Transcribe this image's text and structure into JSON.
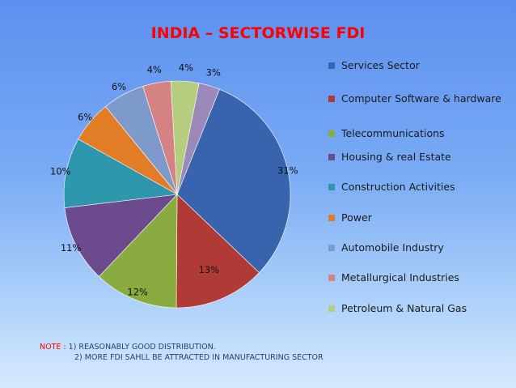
{
  "chart_data": {
    "type": "pie",
    "title": "INDIA – SECTORWISE FDI",
    "legend_position": "right",
    "slices": [
      {
        "name": "Services Sector",
        "value": 31,
        "label": "31%",
        "color": "#3864ad"
      },
      {
        "name": "Computer Software & hardware",
        "value": 13,
        "label": "13%",
        "color": "#b03a36"
      },
      {
        "name": "Telecommunications",
        "value": 12,
        "label": "12%",
        "color": "#89ab3f"
      },
      {
        "name": "Housing & real Estate",
        "value": 11,
        "label": "11%",
        "color": "#6b4a8e"
      },
      {
        "name": "Construction Activities",
        "value": 10,
        "label": "10%",
        "color": "#2e96ad"
      },
      {
        "name": "Power",
        "value": 6,
        "label": "6%",
        "color": "#e27d27"
      },
      {
        "name": "Automobile Industry",
        "value": 6,
        "label": "6%",
        "color": "#7d9acb"
      },
      {
        "name": "Metallurgical Industries",
        "value": 4,
        "label": "4%",
        "color": "#d48382"
      },
      {
        "name": "Petroleum & Natural Gas",
        "value": 4,
        "label": "4%",
        "color": "#b5cd7f"
      },
      {
        "name": "",
        "value": 3,
        "label": "3%",
        "color": "#9b8ab9"
      }
    ]
  },
  "note": {
    "prefix": "NOTE :",
    "line1": "1) REASONABLY GOOD DISTRIBUTION.",
    "line2": "2) MORE FDI SAHLL BE ATTRACTED IN MANUFACTURING SECTOR"
  }
}
